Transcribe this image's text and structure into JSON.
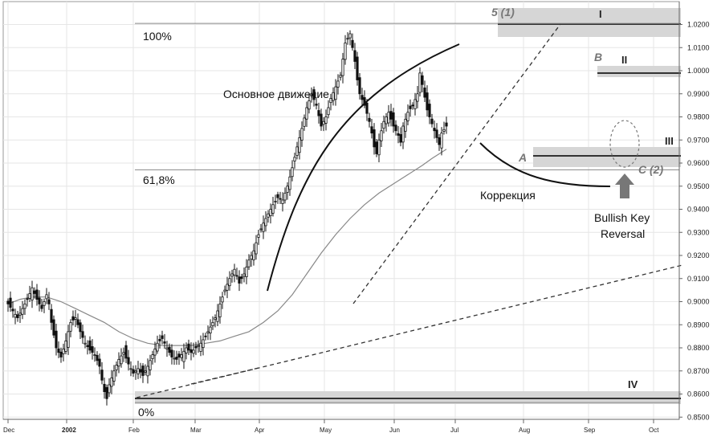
{
  "chart_data": {
    "type": "candlestick",
    "price_axis": {
      "ticks": [
        "1.0200",
        "1.0100",
        "1.0000",
        "0.9900",
        "0.9800",
        "0.9700",
        "0.9600",
        "0.9500",
        "0.9400",
        "0.9300",
        "0.9200",
        "0.9100",
        "0.9000",
        "0.8900",
        "0.8800",
        "0.8700",
        "0.8600",
        "0.8500"
      ],
      "ylim": [
        0.8475,
        1.026
      ]
    },
    "time_axis": {
      "ticks": [
        "Dec",
        "2002",
        "Feb",
        "Mar",
        "Apr",
        "May",
        "Jun",
        "Jul",
        "Aug",
        "Sep",
        "Oct"
      ]
    },
    "grid": true,
    "fib_levels": [
      {
        "label": "100%",
        "price": 1.0205
      },
      {
        "label": "61,8%",
        "price": 0.9571
      },
      {
        "label": "0%",
        "price": 0.8563
      }
    ],
    "annotations": {
      "main_move": "Основное движение",
      "correction": "Коррекция",
      "reversal_line1": "Bullish Key",
      "reversal_line2": "Reversal",
      "wave_5": "5 (1)",
      "point_a": "A",
      "point_b": "B",
      "point_c": "C (2)",
      "zone_i": "I",
      "zone_ii": "II",
      "zone_iii": "III",
      "zone_iv": "IV"
    },
    "series": [
      {
        "name": "",
        "kind": "close",
        "points": [
          [
            0,
            0.899
          ],
          [
            2,
            0.896
          ],
          [
            4,
            0.893
          ],
          [
            6,
            0.897
          ],
          [
            8,
            0.901
          ],
          [
            10,
            0.906
          ],
          [
            12,
            0.901
          ],
          [
            14,
            0.897
          ],
          [
            16,
            0.903
          ],
          [
            17,
            0.899
          ],
          [
            18,
            0.891
          ],
          [
            20,
            0.88
          ],
          [
            22,
            0.876
          ],
          [
            24,
            0.883
          ],
          [
            26,
            0.891
          ],
          [
            28,
            0.893
          ],
          [
            30,
            0.887
          ],
          [
            32,
            0.882
          ],
          [
            34,
            0.879
          ],
          [
            36,
            0.877
          ],
          [
            38,
            0.872
          ],
          [
            39,
            0.866
          ],
          [
            40,
            0.861
          ],
          [
            41,
            0.858
          ],
          [
            42,
            0.864
          ],
          [
            44,
            0.87
          ],
          [
            46,
            0.875
          ],
          [
            48,
            0.878
          ],
          [
            50,
            0.873
          ],
          [
            52,
            0.869
          ],
          [
            54,
            0.871
          ],
          [
            56,
            0.868
          ],
          [
            58,
            0.872
          ],
          [
            60,
            0.877
          ],
          [
            62,
            0.882
          ],
          [
            64,
            0.884
          ],
          [
            66,
            0.88
          ],
          [
            68,
            0.876
          ],
          [
            70,
            0.875
          ],
          [
            72,
            0.877
          ],
          [
            74,
            0.88
          ],
          [
            76,
            0.878
          ],
          [
            78,
            0.88
          ],
          [
            80,
            0.882
          ],
          [
            82,
            0.885
          ],
          [
            84,
            0.889
          ],
          [
            86,
            0.893
          ],
          [
            88,
            0.899
          ],
          [
            90,
            0.905
          ],
          [
            92,
            0.91
          ],
          [
            94,
            0.914
          ],
          [
            96,
            0.908
          ],
          [
            98,
            0.912
          ],
          [
            100,
            0.918
          ],
          [
            102,
            0.922
          ],
          [
            104,
            0.929
          ],
          [
            106,
            0.934
          ],
          [
            108,
            0.938
          ],
          [
            110,
            0.942
          ],
          [
            112,
            0.945
          ],
          [
            114,
            0.944
          ],
          [
            116,
            0.95
          ],
          [
            118,
            0.958
          ],
          [
            120,
            0.967
          ],
          [
            122,
            0.975
          ],
          [
            124,
            0.984
          ],
          [
            126,
            0.99
          ],
          [
            128,
            0.985
          ],
          [
            130,
            0.976
          ],
          [
            132,
            0.98
          ],
          [
            134,
            0.988
          ],
          [
            136,
            0.993
          ],
          [
            138,
            0.998
          ],
          [
            139,
            1.005
          ],
          [
            140,
            1.012
          ],
          [
            142,
            1.016
          ],
          [
            144,
            1.004
          ],
          [
            145,
            0.996
          ],
          [
            146,
            0.99
          ],
          [
            148,
            0.985
          ],
          [
            150,
            0.978
          ],
          [
            151,
            0.973
          ],
          [
            152,
            0.967
          ],
          [
            153,
            0.964
          ],
          [
            154,
            0.97
          ],
          [
            156,
            0.978
          ],
          [
            158,
            0.982
          ],
          [
            160,
            0.976
          ],
          [
            162,
            0.972
          ],
          [
            163,
            0.969
          ],
          [
            164,
            0.976
          ],
          [
            166,
            0.982
          ],
          [
            168,
            0.985
          ],
          [
            170,
            0.99
          ],
          [
            171,
            0.999
          ],
          [
            172,
            0.994
          ],
          [
            174,
            0.983
          ],
          [
            176,
            0.977
          ],
          [
            178,
            0.971
          ],
          [
            179,
            0.968
          ],
          [
            180,
            0.973
          ],
          [
            182,
            0.976
          ]
        ]
      },
      {
        "name": "",
        "kind": "moving-average",
        "points": [
          [
            0,
            0.899
          ],
          [
            5,
            0.901
          ],
          [
            10,
            0.902
          ],
          [
            16,
            0.902
          ],
          [
            22,
            0.9
          ],
          [
            28,
            0.897
          ],
          [
            34,
            0.894
          ],
          [
            40,
            0.891
          ],
          [
            46,
            0.887
          ],
          [
            52,
            0.884
          ],
          [
            58,
            0.882
          ],
          [
            64,
            0.881
          ],
          [
            70,
            0.881
          ],
          [
            76,
            0.881
          ],
          [
            82,
            0.882
          ],
          [
            88,
            0.883
          ],
          [
            94,
            0.885
          ],
          [
            100,
            0.887
          ],
          [
            106,
            0.891
          ],
          [
            112,
            0.896
          ],
          [
            118,
            0.903
          ],
          [
            124,
            0.912
          ],
          [
            130,
            0.921
          ],
          [
            136,
            0.929
          ],
          [
            142,
            0.936
          ],
          [
            148,
            0.942
          ],
          [
            154,
            0.947
          ],
          [
            160,
            0.951
          ],
          [
            166,
            0.955
          ],
          [
            172,
            0.959
          ],
          [
            176,
            0.962
          ],
          [
            182,
            0.966
          ]
        ]
      }
    ]
  }
}
